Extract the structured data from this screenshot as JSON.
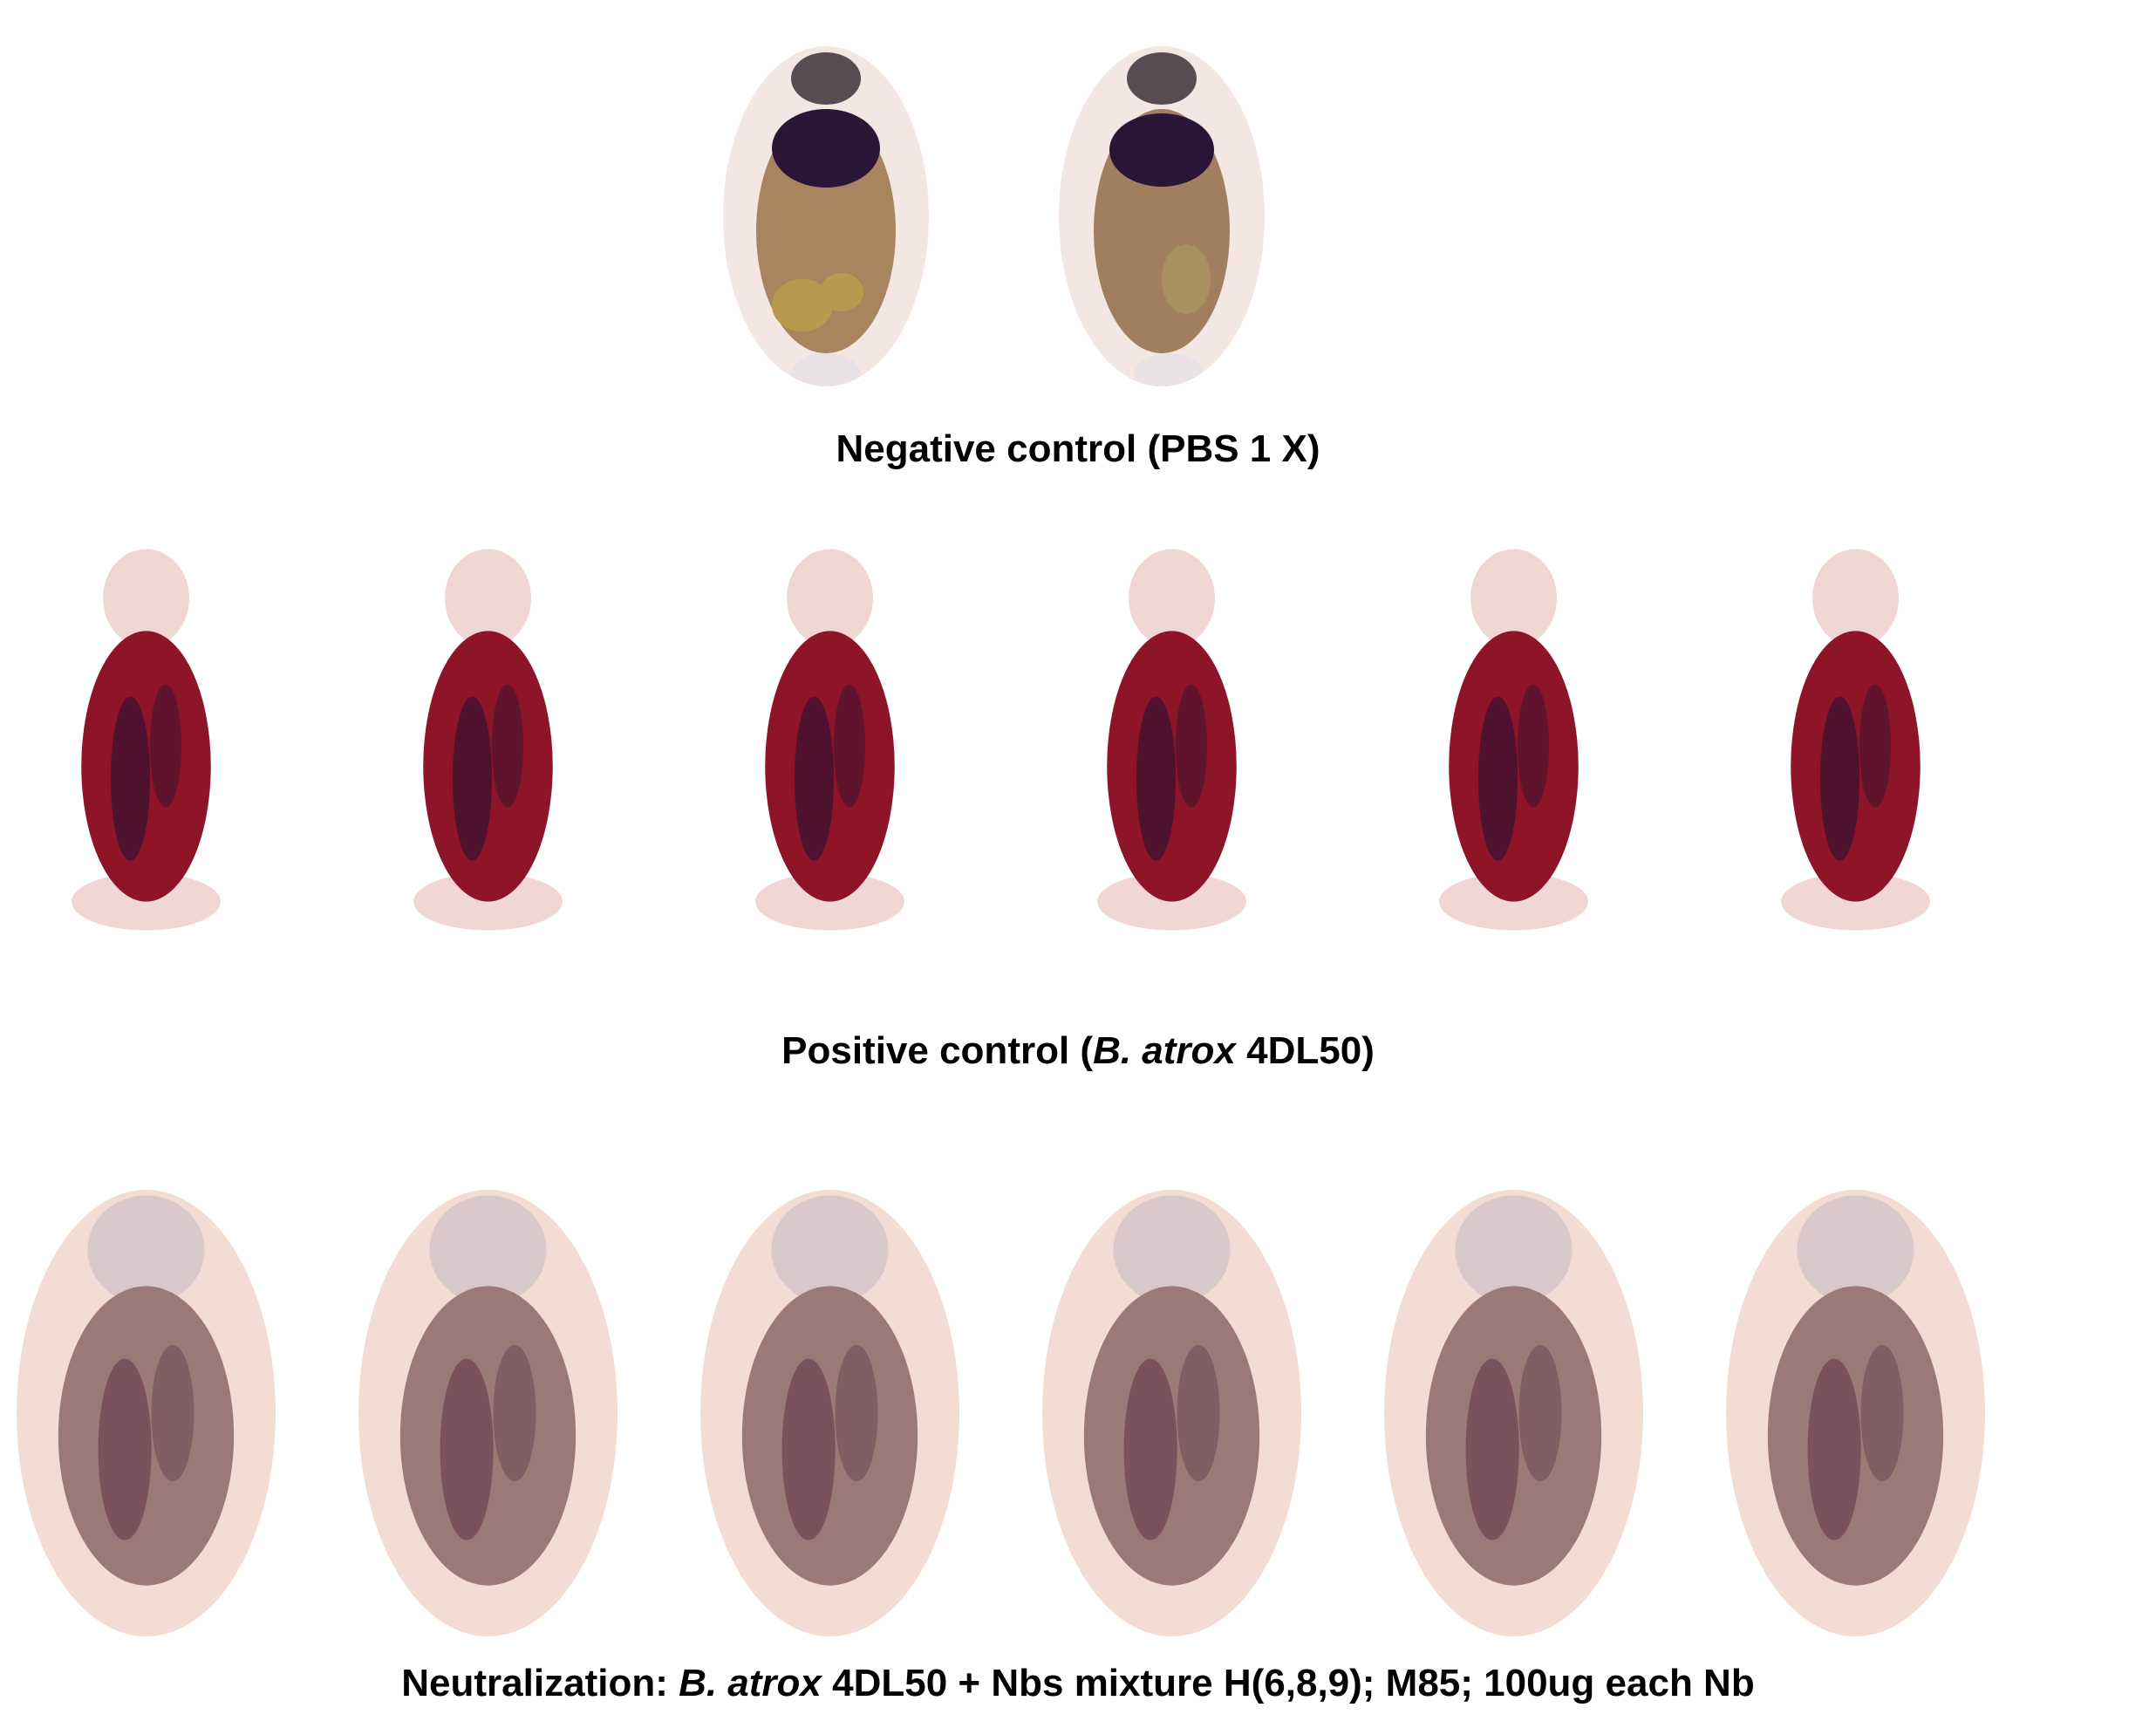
{
  "figure": {
    "rows": [
      {
        "id": "negative",
        "caption_parts": [
          {
            "text": "Negative control (PBS 1 X)",
            "italic": false
          }
        ],
        "specimen_count": 2,
        "specimen_appearance": "normal",
        "colors": {
          "body": "#a8855e",
          "organ": "#2b1536",
          "intestine": "#b89a4e",
          "skin": "#f1dedb"
        }
      },
      {
        "id": "positive",
        "caption_parts": [
          {
            "text": "Positive control (",
            "italic": false
          },
          {
            "text": "B. atrox",
            "italic": true
          },
          {
            "text": " 4DL50)",
            "italic": false
          }
        ],
        "specimen_count": 6,
        "specimen_appearance": "hemorrhagic",
        "colors": {
          "body": "#8e1427",
          "organ": "#3a1232",
          "skin": "#f0d7d4"
        }
      },
      {
        "id": "neutralization",
        "caption_parts": [
          {
            "text": "Neutralization: ",
            "italic": false
          },
          {
            "text": "B. atrox",
            "italic": true
          },
          {
            "text": " 4DL50  + Nbs mixture H(6,8,9); M85; 100ug each Nb",
            "italic": false
          }
        ],
        "specimen_count": 6,
        "specimen_appearance": "neutralized",
        "colors": {
          "body": "#9a7a76",
          "organ": "#6d4656",
          "skin": "#f2dcd4"
        }
      }
    ]
  }
}
